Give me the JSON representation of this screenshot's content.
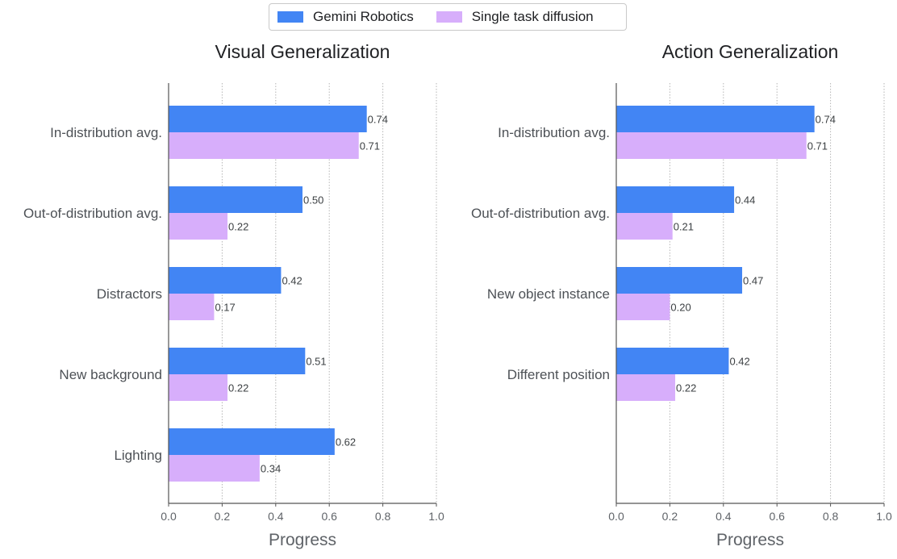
{
  "legend": {
    "items": [
      {
        "label": "Gemini Robotics",
        "color": "#4285f4"
      },
      {
        "label": "Single task diffusion",
        "color": "#d7aefb"
      }
    ]
  },
  "chart_data": [
    {
      "type": "bar",
      "orientation": "horizontal",
      "title": "Visual Generalization",
      "xlabel": "Progress",
      "xlim": [
        0,
        1.0
      ],
      "xticks": [
        "0.0",
        "0.2",
        "0.4",
        "0.6",
        "0.8",
        "1.0"
      ],
      "grid": true,
      "categories": [
        "In-distribution avg.",
        "Out-of-distribution avg.",
        "Distractors",
        "New background",
        "Lighting"
      ],
      "series": [
        {
          "name": "Gemini Robotics",
          "color": "#4285f4",
          "values": [
            0.74,
            0.5,
            0.42,
            0.51,
            0.62
          ],
          "labels": [
            "0.74",
            "0.50",
            "0.42",
            "0.51",
            "0.62"
          ]
        },
        {
          "name": "Single task diffusion",
          "color": "#d7aefb",
          "values": [
            0.71,
            0.22,
            0.17,
            0.22,
            0.34
          ],
          "labels": [
            "0.71",
            "0.22",
            "0.17",
            "0.22",
            "0.34"
          ]
        }
      ]
    },
    {
      "type": "bar",
      "orientation": "horizontal",
      "title": "Action Generalization",
      "xlabel": "Progress",
      "xlim": [
        0,
        1.0
      ],
      "xticks": [
        "0.0",
        "0.2",
        "0.4",
        "0.6",
        "0.8",
        "1.0"
      ],
      "grid": true,
      "categories": [
        "In-distribution avg.",
        "Out-of-distribution avg.",
        "New object instance",
        "Different position"
      ],
      "series": [
        {
          "name": "Gemini Robotics",
          "color": "#4285f4",
          "values": [
            0.74,
            0.44,
            0.47,
            0.42
          ],
          "labels": [
            "0.74",
            "0.44",
            "0.47",
            "0.42"
          ]
        },
        {
          "name": "Single task diffusion",
          "color": "#d7aefb",
          "values": [
            0.71,
            0.21,
            0.2,
            0.22
          ],
          "labels": [
            "0.71",
            "0.21",
            "0.20",
            "0.22"
          ]
        }
      ]
    }
  ]
}
